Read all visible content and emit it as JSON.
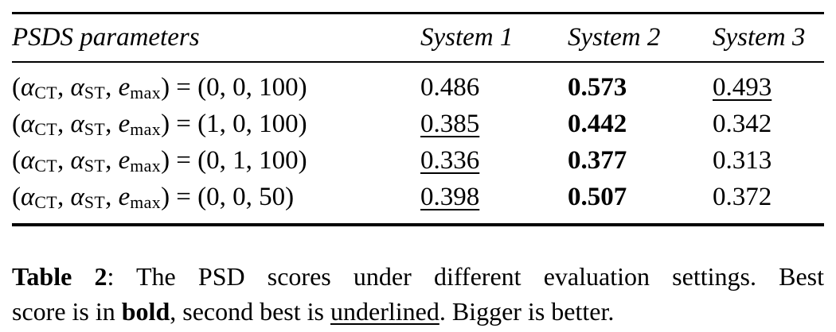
{
  "table": {
    "header": {
      "param_label": "PSDS parameters",
      "systems": [
        "System 1",
        "System 2",
        "System 3"
      ]
    },
    "param_template": {
      "open": "(",
      "alpha": "α",
      "sub_ct": "CT",
      "sep": ", ",
      "sub_st": "ST",
      "e_var": "e",
      "sub_max": "max",
      "close_equals": ") = "
    },
    "rows": [
      {
        "setting": "(0, 0, 100)",
        "scores": [
          {
            "value": "0.486",
            "emphasis": "none"
          },
          {
            "value": "0.573",
            "emphasis": "bold"
          },
          {
            "value": "0.493",
            "emphasis": "underline"
          }
        ]
      },
      {
        "setting": "(1, 0, 100)",
        "scores": [
          {
            "value": "0.385",
            "emphasis": "underline"
          },
          {
            "value": "0.442",
            "emphasis": "bold"
          },
          {
            "value": "0.342",
            "emphasis": "none"
          }
        ]
      },
      {
        "setting": "(0, 1, 100)",
        "scores": [
          {
            "value": "0.336",
            "emphasis": "underline"
          },
          {
            "value": "0.377",
            "emphasis": "bold"
          },
          {
            "value": "0.313",
            "emphasis": "none"
          }
        ]
      },
      {
        "setting": "(0, 0, 50)",
        "scores": [
          {
            "value": "0.398",
            "emphasis": "underline"
          },
          {
            "value": "0.507",
            "emphasis": "bold"
          },
          {
            "value": "0.372",
            "emphasis": "none"
          }
        ]
      }
    ]
  },
  "caption": {
    "line1": [
      {
        "text": "Table 2",
        "style": "bold"
      },
      {
        "text": ": The PSD scores under different evaluation settings. Best",
        "style": "normal"
      }
    ],
    "line2": [
      {
        "text": "score is in ",
        "style": "normal"
      },
      {
        "text": "bold",
        "style": "bold"
      },
      {
        "text": ", second best is ",
        "style": "normal"
      },
      {
        "text": "underlined",
        "style": "underline"
      },
      {
        "text": ". Bigger is better.",
        "style": "normal"
      }
    ]
  },
  "colors": {
    "text": "#000000",
    "background": "#ffffff",
    "rule": "#000000"
  }
}
